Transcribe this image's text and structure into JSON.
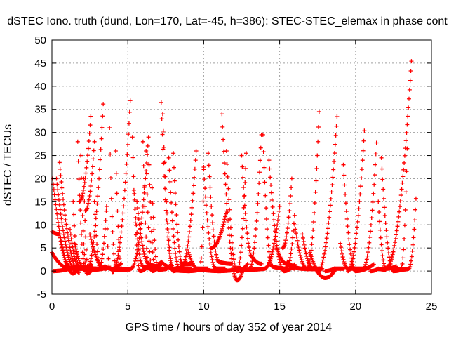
{
  "chart_data": {
    "type": "scatter",
    "title": "dSTEC Iono. truth (dund, Lon=170, Lat=-45, h=386): STEC-STEC_elemax in phase cont",
    "xlabel": "GPS time / hours of day 352 of year 2014",
    "ylabel": "dSTEC  / TECUs",
    "xlim": [
      0,
      25
    ],
    "ylim": [
      -5,
      50
    ],
    "x_ticks": [
      "0",
      "5",
      "10",
      "15",
      "20",
      "25"
    ],
    "y_ticks": [
      "-5",
      "0",
      "5",
      "10",
      "15",
      "20",
      "25",
      "30",
      "35",
      "40",
      "45",
      "50"
    ],
    "grid": true,
    "marker": "+",
    "series_color": "#ff0000",
    "passes": [
      [
        0.0,
        8.5,
        0.5,
        8.0,
        1.2
      ],
      [
        0.05,
        20.0,
        1.4,
        -0.5,
        1.7
      ],
      [
        0.3,
        20.0,
        1.6,
        0.0,
        1.6
      ],
      [
        0.5,
        23.5,
        1.8,
        -0.3,
        1.8
      ],
      [
        0.0,
        4.0,
        1.2,
        0.5,
        2.5
      ],
      [
        0.1,
        0.0,
        1.6,
        1.0,
        3.2
      ],
      [
        1.2,
        9.0,
        1.8,
        0.8,
        2.7
      ],
      [
        1.4,
        15.0,
        1.8,
        0.5,
        2.6
      ],
      [
        1.7,
        28.0,
        2.2,
        0.5,
        2.6
      ],
      [
        1.9,
        25.0,
        2.3,
        -0.5,
        2.7
      ],
      [
        2.1,
        20.0,
        2.4,
        0.3,
        2.6
      ],
      [
        1.8,
        15.0,
        2.6,
        35.5,
        2.5
      ],
      [
        2.2,
        13.0,
        2.8,
        28.0,
        2.8
      ],
      [
        1.5,
        6.0,
        2.2,
        0.2,
        3.4
      ],
      [
        2.3,
        0.3,
        3.4,
        37.5,
        1.4
      ],
      [
        2.5,
        8.0,
        3.5,
        0.5,
        3.6
      ],
      [
        2.8,
        15.0,
        3.2,
        0.6,
        3.5
      ],
      [
        3.1,
        0.5,
        3.6,
        14.0,
        3.8
      ],
      [
        3.8,
        31.0,
        4.2,
        1.0,
        4.6
      ],
      [
        4.2,
        26.0,
        4.6,
        0.5,
        4.5
      ],
      [
        3.5,
        1.0,
        4.2,
        0.3,
        5.2
      ],
      [
        4.0,
        -0.2,
        5.2,
        39.5,
        1.4
      ],
      [
        5.3,
        29.0,
        5.8,
        0.0,
        6.5
      ],
      [
        5.4,
        17.5,
        6.0,
        1.0,
        6.8
      ],
      [
        5.6,
        15.0,
        6.4,
        1.5,
        7.0
      ],
      [
        6.0,
        28.0,
        6.4,
        0.5,
        6.9
      ],
      [
        6.2,
        26.0,
        6.6,
        0.0,
        7.2
      ],
      [
        6.4,
        23.0,
        6.8,
        0.5,
        7.3
      ],
      [
        5.2,
        0.5,
        6.4,
        31.0,
        1.3
      ],
      [
        6.6,
        18.0,
        7.0,
        0.3,
        7.6
      ],
      [
        7.2,
        36.5,
        8.0,
        0.0,
        8.8
      ],
      [
        7.3,
        34.0,
        8.0,
        0.5,
        9.2
      ],
      [
        6.5,
        0.5,
        7.2,
        2.0,
        8.3
      ],
      [
        7.7,
        24.5,
        8.4,
        0.5,
        9.2
      ],
      [
        8.0,
        25.5,
        8.6,
        1.5,
        9.3
      ],
      [
        8.5,
        0.5,
        9.5,
        26.0,
        2.0
      ],
      [
        9.0,
        4.0,
        9.6,
        0.5,
        10.3
      ],
      [
        8.0,
        0.2,
        9.0,
        0.0,
        10.0
      ],
      [
        9.8,
        2.0,
        10.0,
        22.5,
        1.7
      ],
      [
        10.0,
        22.0,
        10.8,
        0.5,
        11.4
      ],
      [
        10.3,
        25.5,
        11.0,
        2.0,
        11.8
      ],
      [
        10.5,
        5.0,
        11.5,
        13.0,
        2.0
      ],
      [
        9.5,
        0.5,
        11.0,
        0.0,
        12.2
      ],
      [
        11.2,
        34.0,
        12.2,
        -2.0,
        12.6
      ],
      [
        11.5,
        26.0,
        12.2,
        0.0,
        12.9
      ],
      [
        12.2,
        0.0,
        12.8,
        25.5,
        2.0
      ],
      [
        12.5,
        25.0,
        13.2,
        3.0,
        13.8
      ],
      [
        12.0,
        0.5,
        13.0,
        0.3,
        14.0
      ],
      [
        13.0,
        0.3,
        13.8,
        29.5,
        1.5
      ],
      [
        13.9,
        29.5,
        14.5,
        1.0,
        15.5
      ],
      [
        14.3,
        24.0,
        15.3,
        0.0,
        16.0
      ],
      [
        14.0,
        0.5,
        15.0,
        14.0,
        2.0
      ],
      [
        14.8,
        5.0,
        15.5,
        1.5,
        16.0
      ],
      [
        15.2,
        5.0,
        15.8,
        20.0,
        1.6
      ],
      [
        15.5,
        1.0,
        16.0,
        13.0,
        2.2
      ],
      [
        16.0,
        10.0,
        16.8,
        0.5,
        17.2
      ],
      [
        15.5,
        2.0,
        16.5,
        0.5,
        17.5
      ],
      [
        16.5,
        8.0,
        17.2,
        0.5,
        17.8
      ],
      [
        16.8,
        0.3,
        17.6,
        34.5,
        1.4
      ],
      [
        17.5,
        -0.3,
        18.8,
        34.5,
        1.5
      ],
      [
        17.0,
        4.0,
        18.0,
        -1.5,
        18.7
      ],
      [
        18.0,
        0.0,
        18.6,
        0.5,
        19.2
      ],
      [
        19.2,
        23.0,
        20.0,
        0.0,
        21.2
      ],
      [
        19.0,
        6.0,
        19.5,
        0.5,
        20.5
      ],
      [
        19.5,
        0.0,
        20.6,
        31.5,
        1.4
      ],
      [
        20.5,
        0.5,
        21.4,
        29.0,
        1.6
      ],
      [
        21.0,
        0.0,
        21.5,
        0.5,
        22.0
      ],
      [
        21.7,
        24.5,
        22.5,
        0.0,
        23.2
      ],
      [
        21.5,
        15.0,
        22.0,
        0.5,
        22.7
      ],
      [
        22.5,
        0.5,
        23.0,
        0.3,
        23.5
      ],
      [
        22.0,
        0.5,
        23.7,
        46.5,
        1.3
      ],
      [
        23.0,
        0.5,
        23.4,
        26.5,
        1.8
      ],
      [
        23.5,
        0.5,
        24.0,
        17.0,
        2.0
      ]
    ]
  }
}
